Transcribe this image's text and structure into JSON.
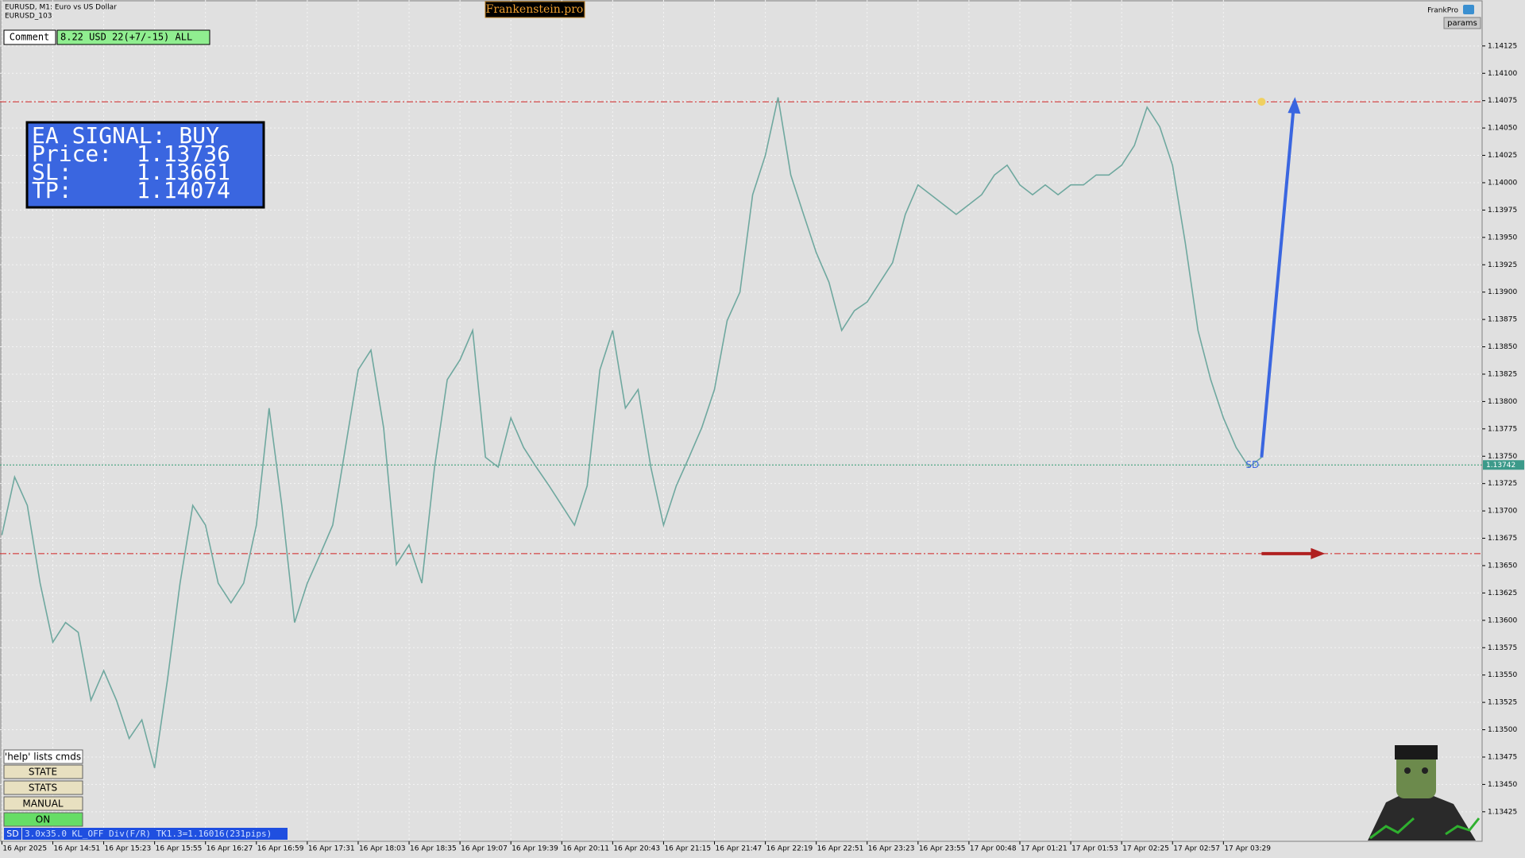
{
  "window": {
    "symbol_title": "EURUSD, M1:  Euro vs US Dollar",
    "account": "EURUSD_103",
    "brand": "Frankenstein.pro",
    "expert": "FrankPro",
    "params_button": "params",
    "comment_label": "Comment",
    "comment_text": "8.22 USD 22(+7/-15) ALL"
  },
  "signal": {
    "heading": "EA SIGNAL: BUY",
    "price_label": "Price:",
    "price": 1.13736,
    "sl_label": "SL:",
    "sl": 1.13661,
    "tp_label": "TP:",
    "tp": 1.14074
  },
  "buttons": [
    "'help' lists cmds",
    "STATE",
    "STATS",
    "MANUAL",
    "ON"
  ],
  "status": {
    "tag": "SD",
    "text": "3.0x35.0 KL_OFF Div(F/R) TK1.3=1.16016(231pips)"
  },
  "chart_data": {
    "type": "line",
    "categories": [
      "16 Apr 2025",
      null,
      null,
      null,
      "16 Apr 14:51",
      null,
      null,
      null,
      "16 Apr 15:23",
      null,
      null,
      null,
      "16 Apr 15:55",
      null,
      null,
      null,
      "16 Apr 16:27",
      null,
      null,
      null,
      "16 Apr 16:59",
      null,
      null,
      null,
      "16 Apr 17:31",
      null,
      null,
      null,
      "16 Apr 18:03",
      null,
      null,
      null,
      "16 Apr 18:35",
      null,
      null,
      null,
      "16 Apr 19:07",
      null,
      null,
      null,
      "16 Apr 19:39",
      null,
      null,
      null,
      "16 Apr 20:11",
      null,
      null,
      null,
      "16 Apr 20:43",
      null,
      null,
      null,
      "16 Apr 21:15",
      null,
      null,
      null,
      "16 Apr 21:47",
      null,
      null,
      null,
      "16 Apr 22:19",
      null,
      null,
      null,
      "16 Apr 22:51",
      null,
      null,
      null,
      "16 Apr 23:23",
      null,
      null,
      null,
      "16 Apr 23:55",
      null,
      null,
      null,
      "17 Apr 00:48",
      null,
      null,
      null,
      "17 Apr 01:21",
      null,
      null,
      null,
      "17 Apr 01:53",
      null,
      null,
      null,
      "17 Apr 02:25",
      null,
      null,
      null,
      "17 Apr 02:57",
      null,
      null,
      null,
      "17 Apr 03:29",
      null,
      null,
      null
    ],
    "series": [
      {
        "color": "#6fa89f",
        "values": [
          1.13678,
          1.13731,
          1.13705,
          1.13634,
          1.1358,
          1.13598,
          1.13589,
          1.13527,
          1.13554,
          1.13527,
          1.13492,
          1.13509,
          1.13465,
          1.13545,
          1.13634,
          1.13705,
          1.13687,
          1.13634,
          1.13616,
          1.13634,
          1.13687,
          1.13794,
          1.13705,
          1.13598,
          1.13634,
          1.1366,
          1.13687,
          1.13758,
          1.13829,
          1.13847,
          1.13776,
          1.13651,
          1.13669,
          1.13634,
          1.1374,
          1.1382,
          1.13838,
          1.13865,
          1.13749,
          1.1374,
          1.13785,
          1.13758,
          1.1374,
          1.13723,
          1.13705,
          1.13687,
          1.13723,
          1.13829,
          1.13865,
          1.13794,
          1.13811,
          1.1374,
          1.13687,
          1.13723,
          1.13749,
          1.13776,
          1.13811,
          1.13874,
          1.139,
          1.13989,
          1.14025,
          1.14078,
          1.14007,
          1.13971,
          1.13936,
          1.13909,
          1.13865,
          1.13883,
          1.13891,
          1.13909,
          1.13927,
          1.13971,
          1.13998,
          1.13989,
          1.1398,
          1.13971,
          1.1398,
          1.13989,
          1.14007,
          1.14016,
          1.13998,
          1.13989,
          1.13998,
          1.13989,
          1.13998,
          1.13998,
          1.14007,
          1.14007,
          1.14016,
          1.14034,
          1.14069,
          1.14051,
          1.14016,
          1.13945,
          1.13865,
          1.1382,
          1.13785,
          1.13758,
          1.1374,
          1.13749
        ]
      }
    ],
    "ylim": [
      1.13398,
      1.14167
    ],
    "yticks": [
      1.13425,
      {
        "value": 1.1345,
        "label": "1.13450"
      },
      1.13475,
      {
        "value": 1.135,
        "label": "1.13500"
      },
      1.13525,
      {
        "value": 1.1355,
        "label": "1.13550"
      },
      1.13575,
      {
        "value": 1.136,
        "label": "1.13600"
      },
      1.13625,
      {
        "value": 1.1365,
        "label": "1.13650"
      },
      1.13675,
      {
        "value": 1.137,
        "label": "1.13700"
      },
      1.13725,
      {
        "value": 1.1375,
        "label": "1.13750"
      },
      1.13775,
      {
        "value": 1.138,
        "label": "1.13800"
      },
      1.13825,
      {
        "value": 1.1385,
        "label": "1.13850"
      },
      1.13875,
      {
        "value": 1.139,
        "label": "1.13900"
      },
      1.13925,
      {
        "value": 1.1395,
        "label": "1.13950"
      },
      1.13975,
      {
        "value": 1.14,
        "label": "1.14000"
      },
      1.14025,
      {
        "value": 1.1405,
        "label": "1.14050"
      },
      1.14075,
      {
        "value": 1.141,
        "label": "1.14100"
      },
      1.14125
    ],
    "grid": true,
    "current_price": 1.13742,
    "marker_label": "SD"
  }
}
